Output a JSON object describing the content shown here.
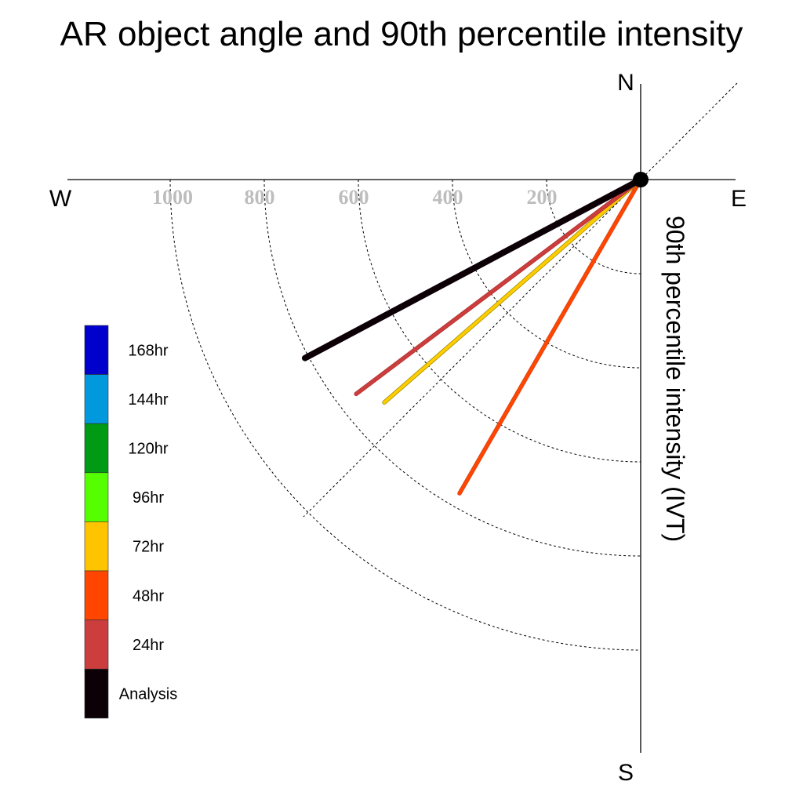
{
  "chart_data": {
    "type": "polar-line",
    "title": "AR object angle and 90th percentile intensity",
    "radial_label": "90th percentile intensity (IVT)",
    "radial_range": [
      0,
      1200
    ],
    "radial_ticks": [
      {
        "value": 200,
        "label": "200"
      },
      {
        "value": 400,
        "label": "400"
      },
      {
        "value": 600,
        "label": "600"
      },
      {
        "value": 800,
        "label": "800"
      },
      {
        "value": 1000,
        "label": "1000"
      }
    ],
    "compass": {
      "north": "N",
      "south": "S",
      "east": "E",
      "west": "W"
    },
    "reference_angle_deg": 45,
    "series": [
      {
        "name": "48hr",
        "color": "#ff4500",
        "edge": "#d24a1e",
        "angle_deg": 60,
        "intensity": 770,
        "width": 4
      },
      {
        "name": "72hr",
        "color": "#ffcc00",
        "edge": "#9a8a00",
        "angle_deg": 41,
        "intensity": 722,
        "width": 4
      },
      {
        "name": "24hr",
        "color": "#cc3d3d",
        "edge": "#b03030",
        "angle_deg": 37,
        "intensity": 757,
        "width": 4
      },
      {
        "name": "Analysis",
        "color": "#0c0006",
        "edge": "#0c0006",
        "angle_deg": 28,
        "intensity": 808,
        "width": 8
      }
    ],
    "legend": [
      {
        "label": "168hr",
        "color": "#0000cc"
      },
      {
        "label": "144hr",
        "color": "#0099dd"
      },
      {
        "label": "120hr",
        "color": "#009a14"
      },
      {
        "label": "96hr",
        "color": "#55ff00"
      },
      {
        "label": "72hr",
        "color": "#ffc400"
      },
      {
        "label": "48hr",
        "color": "#ff4500"
      },
      {
        "label": "24hr",
        "color": "#cc3d3d"
      },
      {
        "label": "Analysis",
        "color": "#0c0006"
      }
    ]
  }
}
